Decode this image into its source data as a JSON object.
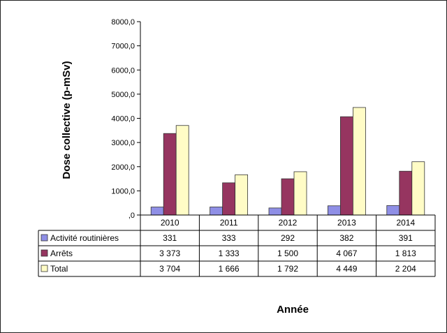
{
  "chart_data": {
    "type": "bar",
    "categories": [
      "2010",
      "2011",
      "2012",
      "2013",
      "2014"
    ],
    "series": [
      {
        "name": "Activité routinières",
        "color": "#8f8fe6",
        "values": [
          331,
          333,
          292,
          382,
          391
        ],
        "labels": [
          "331",
          "333",
          "292",
          "382",
          "391"
        ]
      },
      {
        "name": "Arrêts",
        "color": "#963560",
        "values": [
          3373,
          1333,
          1500,
          4067,
          1813
        ],
        "labels": [
          "3 373",
          "1 333",
          "1 500",
          "4 067",
          "1 813"
        ]
      },
      {
        "name": "Total",
        "color": "#fffcc6",
        "values": [
          3704,
          1666,
          1792,
          4449,
          2204
        ],
        "labels": [
          "3 704",
          "1 666",
          "1 792",
          "4 449",
          "2 204"
        ]
      }
    ],
    "yticks": [
      ",0",
      "1000,0",
      "2000,0",
      "3000,0",
      "4000,0",
      "5000,0",
      "6000,0",
      "7000,0",
      "8000,0"
    ],
    "ylim": [
      0,
      8000
    ],
    "ylabel": "Dose collective (p-mSv)",
    "xlabel": "Année",
    "grid": false,
    "legend": "data-table"
  }
}
